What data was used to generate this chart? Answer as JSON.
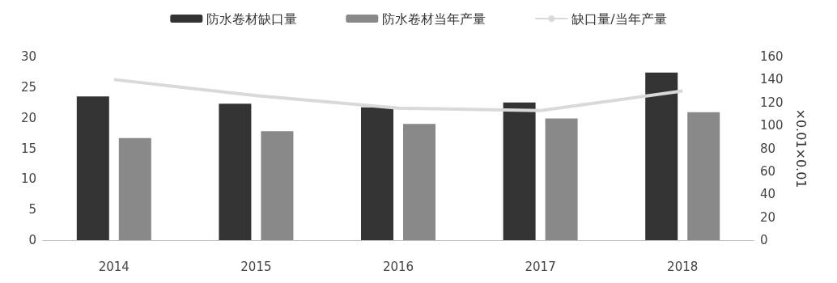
{
  "chart_data": {
    "type": "bar",
    "categories": [
      "2014",
      "2015",
      "2016",
      "2017",
      "2018"
    ],
    "series": [
      {
        "name": "防水卷材缺口量",
        "color": "#333333",
        "values": [
          23.5,
          22.3,
          21.7,
          22.5,
          27.4
        ]
      },
      {
        "name": "防水卷材当年产量",
        "color": "#898989",
        "values": [
          16.7,
          17.8,
          19.0,
          19.9,
          20.9
        ]
      },
      {
        "name": "缺口量/当年产量",
        "type": "line",
        "axis": "y2",
        "color": "#d9d9d9",
        "values": [
          140,
          126,
          115,
          113,
          130
        ]
      }
    ],
    "y2label": "×0.01×0.01",
    "ylim": [
      0,
      30
    ],
    "yticks": [
      0,
      5,
      10,
      15,
      20,
      25,
      30
    ],
    "y2lim": [
      0,
      160
    ],
    "y2ticks": [
      0,
      20,
      40,
      60,
      80,
      100,
      120,
      140,
      160
    ],
    "grid": false,
    "legend": "top",
    "marker": "none"
  }
}
